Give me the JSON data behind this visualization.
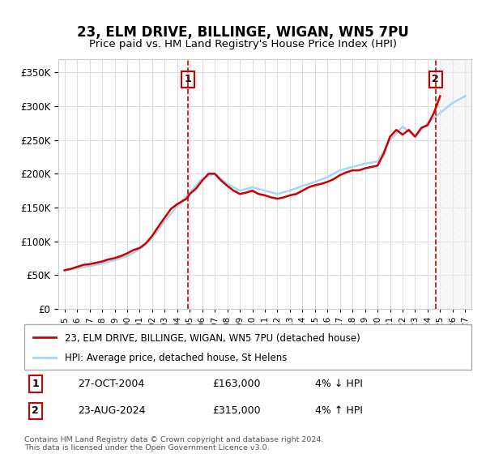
{
  "title": "23, ELM DRIVE, BILLINGE, WIGAN, WN5 7PU",
  "subtitle": "Price paid vs. HM Land Registry's House Price Index (HPI)",
  "hpi_label": "HPI: Average price, detached house, St Helens",
  "property_label": "23, ELM DRIVE, BILLINGE, WIGAN, WN5 7PU (detached house)",
  "transaction1_date": "27-OCT-2004",
  "transaction1_price": 163000,
  "transaction1_hpi": "4% ↓ HPI",
  "transaction2_date": "23-AUG-2024",
  "transaction2_price": 315000,
  "transaction2_hpi": "4% ↑ HPI",
  "hpi_color": "#aad4f5",
  "property_color": "#cc0000",
  "marker1_color": "#cc0000",
  "marker2_color": "#cc0000",
  "background_color": "#ffffff",
  "grid_color": "#dddddd",
  "footnote": "Contains HM Land Registry data © Crown copyright and database right 2024.\nThis data is licensed under the Open Government Licence v3.0.",
  "ylim": [
    0,
    370000
  ],
  "yticks": [
    0,
    50000,
    100000,
    150000,
    200000,
    250000,
    300000,
    350000
  ],
  "hpi_years": [
    1995,
    1996,
    1997,
    1998,
    1999,
    2000,
    2001,
    2002,
    2003,
    2004,
    2005,
    2006,
    2007,
    2008,
    2009,
    2010,
    2011,
    2012,
    2013,
    2014,
    2015,
    2016,
    2017,
    2018,
    2019,
    2020,
    2021,
    2022,
    2023,
    2024,
    2025,
    2026,
    2027
  ],
  "hpi_values": [
    57000,
    60000,
    63000,
    67000,
    72000,
    78000,
    88000,
    105000,
    130000,
    152000,
    172000,
    193000,
    200000,
    185000,
    175000,
    180000,
    175000,
    170000,
    175000,
    182000,
    188000,
    195000,
    205000,
    210000,
    215000,
    218000,
    250000,
    270000,
    255000,
    275000,
    290000,
    305000,
    315000
  ],
  "prop_years": [
    1995.0,
    1995.5,
    1996.0,
    1996.5,
    1997.0,
    1997.5,
    1998.0,
    1998.5,
    1999.0,
    1999.5,
    2000.0,
    2000.5,
    2001.0,
    2001.5,
    2002.0,
    2002.5,
    2003.0,
    2003.5,
    2004.0,
    2004.75,
    2005.0,
    2005.5,
    2006.0,
    2006.5,
    2007.0,
    2007.5,
    2008.0,
    2008.5,
    2009.0,
    2009.5,
    2010.0,
    2010.5,
    2011.0,
    2011.5,
    2012.0,
    2012.5,
    2013.0,
    2013.5,
    2014.0,
    2014.5,
    2015.0,
    2015.5,
    2016.0,
    2016.5,
    2017.0,
    2017.5,
    2018.0,
    2018.5,
    2019.0,
    2019.5,
    2020.0,
    2020.5,
    2021.0,
    2021.5,
    2022.0,
    2022.5,
    2023.0,
    2023.5,
    2024.0,
    2024.5,
    2025.0
  ],
  "prop_values": [
    57000,
    59000,
    62000,
    65000,
    66000,
    68000,
    70000,
    73000,
    75000,
    78000,
    82000,
    87000,
    90000,
    97000,
    108000,
    122000,
    135000,
    148000,
    155000,
    163000,
    170000,
    178000,
    190000,
    200000,
    200000,
    190000,
    182000,
    175000,
    170000,
    172000,
    175000,
    170000,
    168000,
    165000,
    163000,
    165000,
    168000,
    170000,
    175000,
    180000,
    183000,
    185000,
    188000,
    192000,
    198000,
    202000,
    205000,
    205000,
    208000,
    210000,
    212000,
    230000,
    255000,
    265000,
    258000,
    265000,
    255000,
    268000,
    272000,
    290000,
    315000
  ],
  "xtick_years": [
    1995,
    1996,
    1997,
    1998,
    1999,
    2000,
    2001,
    2002,
    2003,
    2004,
    2005,
    2006,
    2007,
    2008,
    2009,
    2010,
    2011,
    2012,
    2013,
    2014,
    2015,
    2016,
    2017,
    2018,
    2019,
    2020,
    2021,
    2022,
    2023,
    2024,
    2025,
    2026,
    2027
  ],
  "transaction1_year": 2004.83,
  "transaction2_year": 2024.64
}
